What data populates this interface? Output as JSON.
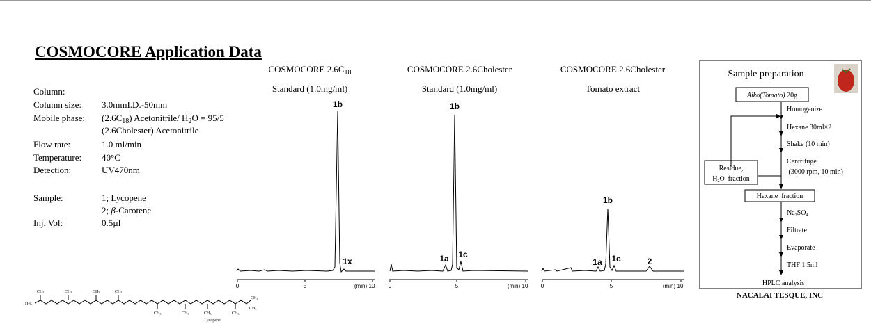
{
  "title": "COSMOCORE Application Data",
  "conditions": [
    {
      "label": "Column:",
      "value": [
        ""
      ]
    },
    {
      "label": "Column size:",
      "value": [
        "3.0mmI.D.-50mm"
      ]
    },
    {
      "label": "Mobile phase:",
      "value": [
        "(2.6C",
        "18",
        ") Acetonitrile/ H",
        "2",
        "O = 95/5"
      ]
    },
    {
      "label": "",
      "value": [
        "(2.6Cholester) Acetonitrile"
      ]
    },
    {
      "label": "Flow rate:",
      "value": [
        "1.0 ml/min"
      ]
    },
    {
      "label": "Temperature:",
      "value": [
        "40°C"
      ]
    },
    {
      "label": "Detection:",
      "value": [
        "UV470nm"
      ]
    },
    {
      "label": "Sample:",
      "value": [
        "1; Lycopene"
      ]
    },
    {
      "label": "",
      "value": [
        "2; ",
        "β",
        "-Carotene"
      ]
    },
    {
      "label": "Inj. Vol:",
      "value": [
        "0.5µl"
      ]
    }
  ],
  "panels": [
    {
      "column": [
        "COSMOCORE 2.6C",
        "18"
      ],
      "sample": "Standard (1.0mg/ml)",
      "peaks": [
        "1b",
        "1x"
      ],
      "ticks": [
        "0",
        "5",
        "10"
      ],
      "unit": "(min)"
    },
    {
      "column": [
        "COSMOCORE 2.6Cholester"
      ],
      "sample": "Standard (1.0mg/ml)",
      "peaks": [
        "1b",
        "1a",
        "1c"
      ],
      "ticks": [
        "0",
        "5",
        "10"
      ],
      "unit": "(min)"
    },
    {
      "column": [
        "COSMOCORE 2.6Cholester"
      ],
      "sample": "Tomato extract",
      "peaks": [
        "1b",
        "1a",
        "1c",
        "2"
      ],
      "ticks": [
        "0",
        "5",
        "10"
      ],
      "unit": "(min)"
    }
  ],
  "preparation": {
    "title": "Sample preparation",
    "start": [
      "Aiko(Tomato)",
      " 20g"
    ],
    "steps1": [
      "Homogenize",
      "Hexane 30ml×2",
      "Shake (10 min)",
      "Centrifuge",
      " (3000 rpm, 10 min)"
    ],
    "residue": [
      "Residue,",
      "H",
      "2",
      "O  fraction"
    ],
    "middle": "Hexane  fraction",
    "steps2": [
      [
        "Na",
        "2",
        "SO",
        "4"
      ],
      "Filtrate",
      "Evaporate",
      "THF 1.5ml"
    ],
    "end": "HPLC analysis",
    "company": "NACALAI TESQUE, INC"
  },
  "structure": {
    "name": "Lycopene",
    "methyl": [
      "CH",
      "3"
    ],
    "methyl_left": [
      "H",
      "3",
      "C"
    ]
  }
}
